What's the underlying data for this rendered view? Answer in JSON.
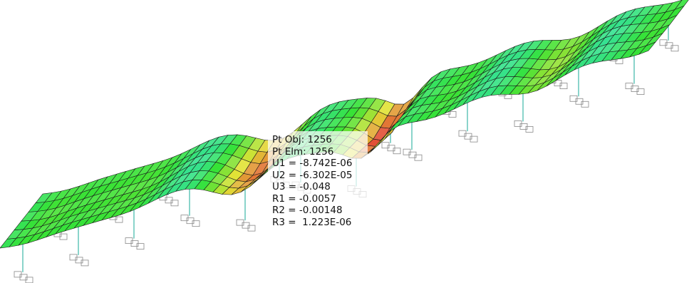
{
  "tooltip": {
    "lines": [
      "Pt Obj: 1256",
      "Pt Elm: 1256",
      "U1 = -8.742E-06",
      "U2 = -6.302E-05",
      "U3 = -0.048",
      "R1 = -0.0057",
      "R2 = -0.00148",
      "R3 =  1.223E-06"
    ]
  }
}
